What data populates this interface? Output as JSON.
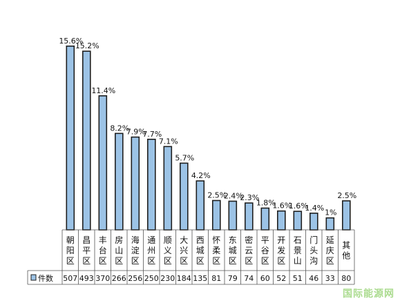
{
  "chart_data": {
    "type": "bar",
    "categories": [
      "朝阳区",
      "昌平区",
      "丰台区",
      "房山区",
      "海淀区",
      "通州区",
      "顺义区",
      "大兴区",
      "西城区",
      "怀柔区",
      "东城区",
      "密云区",
      "平谷区",
      "开发区",
      "石景山",
      "门头沟",
      "延庆区",
      "其他"
    ],
    "series": [
      {
        "name": "件数",
        "values": [
          507,
          493,
          370,
          266,
          256,
          250,
          230,
          184,
          135,
          81,
          79,
          74,
          60,
          52,
          51,
          46,
          33,
          80
        ],
        "labels": [
          "15.6%",
          "15.2%",
          "11.4%",
          "8.2%",
          "7.9%",
          "7.7%",
          "7.1%",
          "5.7%",
          "4.2%",
          "2.5%",
          "2.4%",
          "2.3%",
          "1.8%",
          "1.6%",
          "1.6%",
          "1.4%",
          "1%",
          "2.5%"
        ]
      }
    ],
    "ylim": [
      0,
      520
    ],
    "grid": false,
    "legend": "bottom-left, in data table",
    "bar_color": "#9cc3e6",
    "bar_edge_color": "#1f1f1f"
  },
  "watermark": "国际能源网"
}
